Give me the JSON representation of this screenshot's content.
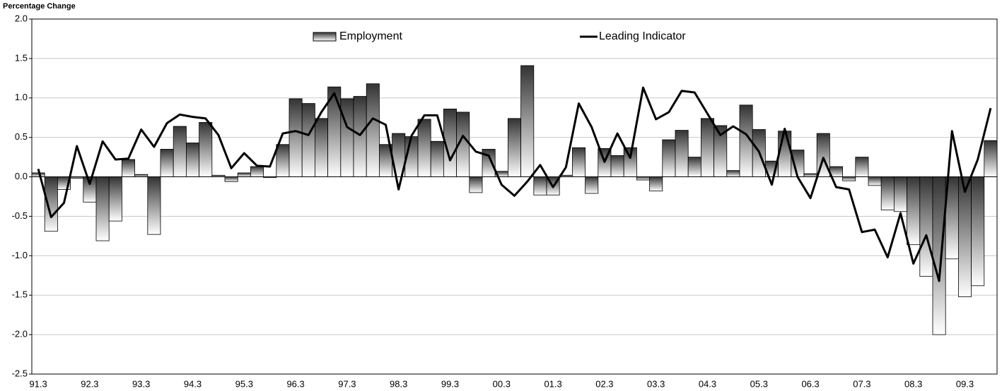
{
  "chart_data": {
    "type": "bar_line",
    "y_label": "Percentage Change",
    "categories": [
      "91.3",
      null,
      null,
      null,
      "92.3",
      null,
      null,
      null,
      "93.3",
      null,
      null,
      null,
      "94.3",
      null,
      null,
      null,
      "95.3",
      null,
      null,
      null,
      "96.3",
      null,
      null,
      null,
      "97.3",
      null,
      null,
      null,
      "98.3",
      null,
      null,
      null,
      "99.3",
      null,
      null,
      null,
      "00.3",
      null,
      null,
      null,
      "01.3",
      null,
      null,
      null,
      "02.3",
      null,
      null,
      null,
      "03.3",
      null,
      null,
      null,
      "04.3",
      null,
      null,
      null,
      "05.3",
      null,
      null,
      null,
      "06.3",
      null,
      null,
      null,
      "07.3",
      null,
      null,
      null,
      "08.3",
      null,
      null,
      null,
      "09.3",
      null,
      null
    ],
    "series": [
      {
        "name": "Employment",
        "type": "bar",
        "color": "#333333",
        "values": [
          0.05,
          -0.69,
          -0.16,
          -0.02,
          -0.32,
          -0.81,
          -0.56,
          0.22,
          0.03,
          -0.73,
          0.35,
          0.64,
          0.43,
          0.69,
          0.02,
          -0.06,
          0.05,
          0.13,
          -0.01,
          0.41,
          0.99,
          0.93,
          0.74,
          1.14,
          0.99,
          1.02,
          1.18,
          0.41,
          0.55,
          0.51,
          0.73,
          0.45,
          0.86,
          0.82,
          -0.2,
          0.35,
          0.07,
          0.74,
          1.41,
          -0.23,
          -0.23,
          0.02,
          0.37,
          -0.21,
          0.36,
          0.27,
          0.37,
          -0.04,
          -0.18,
          0.47,
          0.59,
          0.25,
          0.74,
          0.65,
          0.08,
          0.91,
          0.6,
          0.2,
          0.58,
          0.34,
          0.04,
          0.55,
          0.13,
          -0.05,
          0.25,
          -0.11,
          -0.42,
          -0.44,
          -0.86,
          -1.26,
          -2.0,
          -1.04,
          -1.52,
          -1.38,
          0.46
        ]
      },
      {
        "name": "Leading Indicator",
        "type": "line",
        "color": "#000000",
        "values": [
          0.1,
          -0.51,
          -0.33,
          0.39,
          -0.09,
          0.45,
          0.22,
          0.23,
          0.6,
          0.38,
          0.68,
          0.79,
          0.76,
          0.74,
          0.53,
          0.11,
          0.3,
          0.14,
          0.13,
          0.55,
          0.58,
          0.53,
          0.82,
          1.06,
          0.63,
          0.53,
          0.74,
          0.66,
          -0.16,
          0.52,
          0.78,
          0.78,
          0.21,
          0.52,
          0.32,
          0.27,
          -0.1,
          -0.24,
          -0.06,
          0.15,
          -0.13,
          0.12,
          0.93,
          0.63,
          0.19,
          0.55,
          0.24,
          1.13,
          0.73,
          0.82,
          1.09,
          1.07,
          0.8,
          0.53,
          0.64,
          0.54,
          0.32,
          -0.1,
          0.61,
          0.0,
          -0.27,
          0.24,
          -0.13,
          -0.16,
          -0.7,
          -0.67,
          -1.02,
          -0.46,
          -1.1,
          -0.74,
          -1.32,
          0.58,
          -0.19,
          0.22,
          0.87
        ]
      }
    ],
    "ylim": [
      -2.5,
      2.0
    ],
    "yticks": [
      {
        "value": -2.5,
        "label": "-2.5"
      },
      {
        "value": -2.0,
        "label": "-2.0"
      },
      {
        "value": -1.5,
        "label": "-1.5"
      },
      {
        "value": -1.0,
        "label": "-1.0"
      },
      {
        "value": -0.5,
        "label": "-0.5"
      },
      {
        "value": 0,
        "label": "0.0"
      },
      {
        "value": 0.5,
        "label": "0.5"
      },
      {
        "value": 1.0,
        "label": "1.0"
      },
      {
        "value": 1.5,
        "label": "1.5"
      },
      {
        "value": 2.0,
        "label": "2.0"
      }
    ],
    "grid": true,
    "legend": "top"
  }
}
